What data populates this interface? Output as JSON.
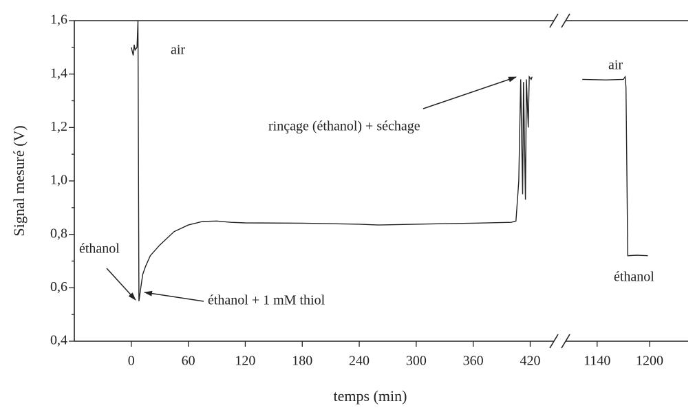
{
  "chart_data": {
    "type": "line",
    "x_label": "temps (min)",
    "y_label": "Signal mesuré (V)",
    "axis_break": true,
    "xlim_segments": [
      [
        -60,
        445
      ],
      [
        1104,
        1244
      ]
    ],
    "xticks": [
      0,
      60,
      120,
      180,
      240,
      300,
      360,
      420,
      1140,
      1200
    ],
    "ylim": [
      0.4,
      1.6
    ],
    "yticks": [
      {
        "value": 0.4,
        "label": "0,4"
      },
      {
        "value": 0.6,
        "label": "0,6"
      },
      {
        "value": 0.8,
        "label": "0,8"
      },
      {
        "value": 1.0,
        "label": "1,0"
      },
      {
        "value": 1.2,
        "label": "1,2"
      },
      {
        "value": 1.4,
        "label": "1,4"
      },
      {
        "value": 1.6,
        "label": "1,6"
      }
    ],
    "yticks_minor": [
      0.5,
      0.7,
      0.9,
      1.1,
      1.3,
      1.5
    ],
    "series": [
      {
        "name": "signal",
        "color": "#222222",
        "x": [
          0,
          2,
          3,
          4,
          6,
          7,
          8,
          10,
          12,
          15,
          20,
          30,
          45,
          60,
          75,
          90,
          105,
          120,
          180,
          240,
          260,
          300,
          360,
          400,
          405,
          408,
          410,
          412,
          413,
          415,
          416,
          418,
          419,
          421,
          422,
          null,
          1123,
          1150,
          1170,
          1172,
          1173,
          1175,
          1185,
          1198
        ],
        "values": [
          1.5,
          1.47,
          1.51,
          1.49,
          1.5,
          1.6,
          0.55,
          0.6,
          0.65,
          0.68,
          0.72,
          0.76,
          0.81,
          0.835,
          0.848,
          0.85,
          0.845,
          0.843,
          0.842,
          0.838,
          0.835,
          0.838,
          0.842,
          0.845,
          0.85,
          1.0,
          1.38,
          0.95,
          1.37,
          0.93,
          1.38,
          1.2,
          1.39,
          1.38,
          1.39,
          null,
          1.38,
          1.378,
          1.38,
          1.39,
          1.35,
          0.72,
          0.722,
          0.72
        ]
      }
    ],
    "annotations": [
      "air",
      "air",
      "rinçage (éthanol) + séchage",
      "éthanol",
      "éthanol +  1 mM thiol",
      "éthanol"
    ]
  }
}
